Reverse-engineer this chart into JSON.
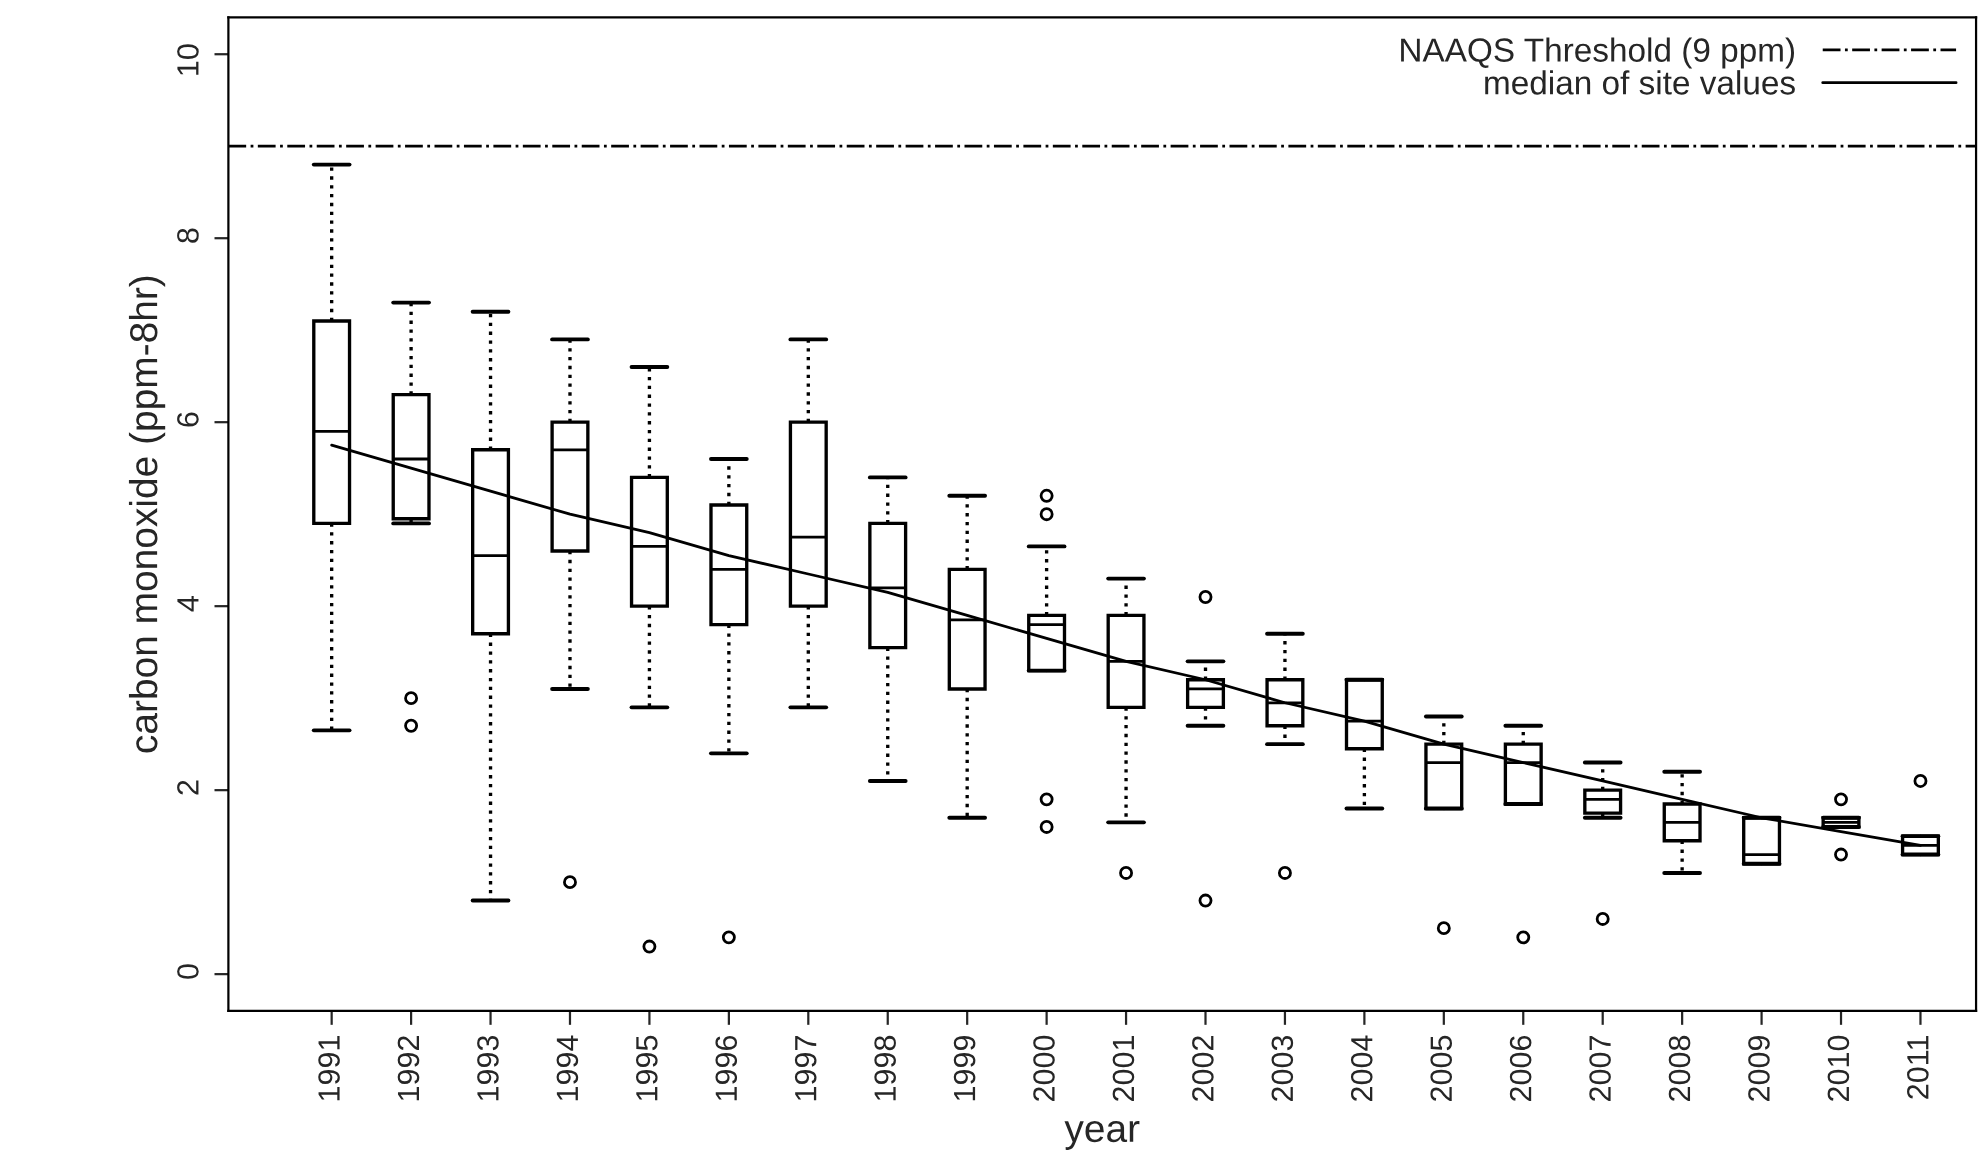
{
  "chart_data": {
    "type": "box",
    "xlabel": "year",
    "ylabel": "carbon monoxide (ppm-8hr)",
    "categories": [
      "1991",
      "1992",
      "1993",
      "1994",
      "1995",
      "1996",
      "1997",
      "1998",
      "1999",
      "2000",
      "2001",
      "2002",
      "2003",
      "2004",
      "2005",
      "2006",
      "2007",
      "2008",
      "2009",
      "2010",
      "2011"
    ],
    "boxes": [
      {
        "low": 2.65,
        "q1": 4.9,
        "median": 5.9,
        "q3": 7.1,
        "high": 8.8
      },
      {
        "low": 4.9,
        "q1": 4.95,
        "median": 5.6,
        "q3": 6.3,
        "high": 7.3,
        "outliers": [
          3.0,
          2.7
        ]
      },
      {
        "low": 0.8,
        "q1": 3.7,
        "median": 4.55,
        "q3": 5.7,
        "high": 7.2
      },
      {
        "low": 3.1,
        "q1": 4.6,
        "median": 5.7,
        "q3": 6.0,
        "high": 6.9,
        "outliers": [
          1.0
        ]
      },
      {
        "low": 2.9,
        "q1": 4.0,
        "median": 4.65,
        "q3": 5.4,
        "high": 6.6,
        "outliers": [
          0.3
        ]
      },
      {
        "low": 2.4,
        "q1": 3.8,
        "median": 4.4,
        "q3": 5.1,
        "high": 5.6,
        "outliers": [
          0.4
        ]
      },
      {
        "low": 2.9,
        "q1": 4.0,
        "median": 4.75,
        "q3": 6.0,
        "high": 6.9
      },
      {
        "low": 2.1,
        "q1": 3.55,
        "median": 4.2,
        "q3": 4.9,
        "high": 5.4
      },
      {
        "low": 1.7,
        "q1": 3.1,
        "median": 3.85,
        "q3": 4.4,
        "high": 5.2
      },
      {
        "low": 3.3,
        "q1": 3.3,
        "median": 3.8,
        "q3": 3.9,
        "high": 4.65,
        "outliers": [
          5.2,
          5.0,
          1.9,
          1.6
        ]
      },
      {
        "low": 1.65,
        "q1": 2.9,
        "median": 3.4,
        "q3": 3.9,
        "high": 4.3,
        "outliers": [
          1.1
        ]
      },
      {
        "low": 2.7,
        "q1": 2.9,
        "median": 3.1,
        "q3": 3.2,
        "high": 3.4,
        "outliers": [
          4.1,
          0.8
        ]
      },
      {
        "low": 2.5,
        "q1": 2.7,
        "median": 2.95,
        "q3": 3.2,
        "high": 3.7,
        "outliers": [
          1.1
        ]
      },
      {
        "low": 1.8,
        "q1": 2.45,
        "median": 2.75,
        "q3": 3.2,
        "high": 3.2
      },
      {
        "low": 1.8,
        "q1": 1.8,
        "median": 2.3,
        "q3": 2.5,
        "high": 2.8,
        "outliers": [
          0.5
        ]
      },
      {
        "low": 1.85,
        "q1": 1.85,
        "median": 2.3,
        "q3": 2.5,
        "high": 2.7,
        "outliers": [
          0.4
        ]
      },
      {
        "low": 1.7,
        "q1": 1.75,
        "median": 1.9,
        "q3": 2.0,
        "high": 2.3,
        "outliers": [
          0.6
        ]
      },
      {
        "low": 1.1,
        "q1": 1.45,
        "median": 1.65,
        "q3": 1.85,
        "high": 2.2
      },
      {
        "low": 1.2,
        "q1": 1.2,
        "median": 1.3,
        "q3": 1.7,
        "high": 1.7
      },
      {
        "low": 1.6,
        "q1": 1.6,
        "median": 1.65,
        "q3": 1.7,
        "high": 1.7,
        "outliers": [
          1.9,
          1.3
        ]
      },
      {
        "low": 1.3,
        "q1": 1.3,
        "median": 1.4,
        "q3": 1.5,
        "high": 1.5,
        "outliers": [
          2.1
        ]
      }
    ],
    "series": [
      {
        "type": "line",
        "name": "median of site values",
        "color": "#000000",
        "values": [
          5.75,
          5.5,
          5.25,
          5.0,
          4.8,
          4.55,
          4.35,
          4.15,
          3.9,
          3.65,
          3.4,
          3.2,
          2.95,
          2.75,
          2.5,
          2.3,
          2.1,
          1.9,
          1.7,
          1.55,
          1.4
        ]
      }
    ],
    "ref_lines": [
      {
        "axis": "y",
        "value": 9,
        "label": "NAAQS Threshold (9 ppm)",
        "line_style": "dashdot",
        "color": "#000000"
      }
    ],
    "ylim": [
      -0.4,
      10.4
    ],
    "yticks": [
      0,
      2,
      4,
      6,
      8,
      10
    ],
    "grid": false,
    "legend": "top right"
  }
}
